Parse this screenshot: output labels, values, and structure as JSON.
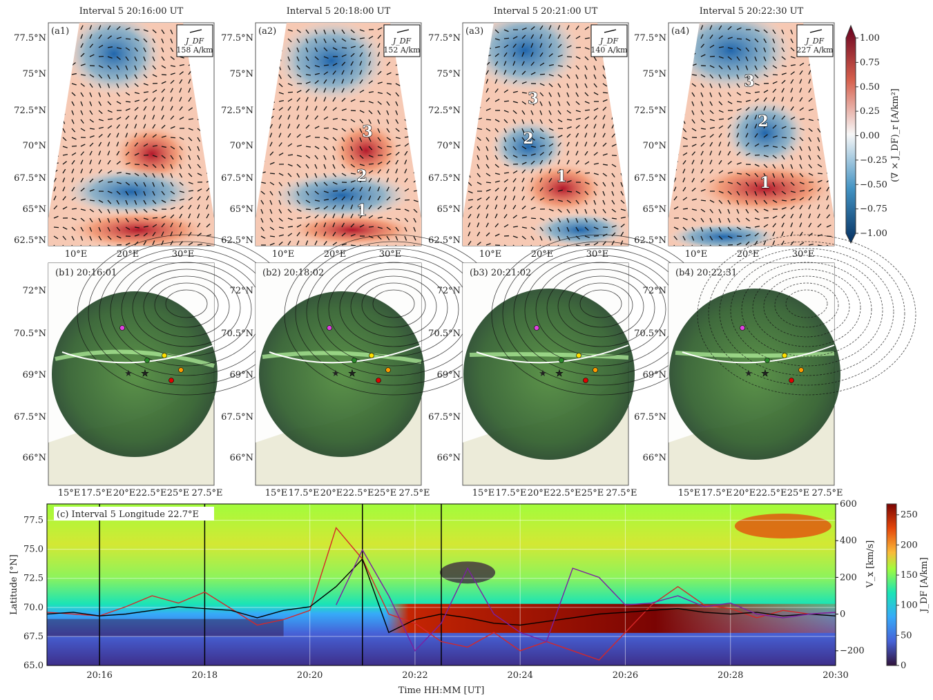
{
  "top_row": {
    "panels": [
      {
        "title": "Interval 5 20:16:00 UT",
        "label": "(a1)",
        "scale_name": "J_DF",
        "scale_value": "158 A/km",
        "regions": []
      },
      {
        "title": "Interval 5 20:18:00 UT",
        "label": "(a2)",
        "scale_name": "J_DF",
        "scale_value": "152 A/km",
        "regions": [
          "3",
          "2",
          "1"
        ]
      },
      {
        "title": "Interval 5 20:21:00 UT",
        "label": "(a3)",
        "scale_name": "J_DF",
        "scale_value": "140 A/km",
        "regions": [
          "3",
          "2",
          "1"
        ]
      },
      {
        "title": "Interval 5 20:22:30 UT",
        "label": "(a4)",
        "scale_name": "J_DF",
        "scale_value": "227 A/km",
        "regions": [
          "3",
          "2",
          "1"
        ]
      }
    ],
    "lat_ticks": [
      "77.5°N",
      "75°N",
      "72.5°N",
      "70°N",
      "67.5°N",
      "65°N",
      "62.5°N"
    ],
    "lon_ticks": [
      "10°E",
      "20°E",
      "30°E"
    ],
    "colorbar": {
      "label": "(∇ × J_DF)_r [A/km²]",
      "lim": [
        -1,
        1
      ],
      "ticks": [
        {
          "value": 1,
          "label": "1.00"
        },
        {
          "value": 0.75,
          "label": "0.75"
        },
        {
          "value": 0.5,
          "label": "0.50"
        },
        {
          "value": 0.25,
          "label": "0.25"
        },
        {
          "value": 0,
          "label": "0.00"
        },
        {
          "value": -0.25,
          "label": "−0.25"
        },
        {
          "value": -0.5,
          "label": "−0.50"
        },
        {
          "value": -0.75,
          "label": "−0.75"
        },
        {
          "value": -1,
          "label": "−1.00"
        }
      ]
    }
  },
  "middle_row": {
    "panels": [
      {
        "label": "(b1) 20:16:01"
      },
      {
        "label": "(b2) 20:18:02"
      },
      {
        "label": "(b3) 20:21:02"
      },
      {
        "label": "(b4) 20:22:31"
      }
    ],
    "lat_ticks": [
      "72°N",
      "70.5°N",
      "69°N",
      "67.5°N",
      "66°N"
    ],
    "lon_ticks": [
      "15°E",
      "17.5°E",
      "20°E",
      "22.5°E",
      "25°E",
      "27.5°E"
    ]
  },
  "chart_data": {
    "type": "line",
    "title": "(c) Interval 5 Longitude 22.7°E",
    "x_label": "Time HH:MM [UT]",
    "y_label": "Latitude [°N]",
    "y2_label": "V_x [km/s]",
    "colorbar_label": "J_DF [A/km]",
    "xlim": [
      "20:15",
      "20:30"
    ],
    "xticks": [
      "20:16",
      "20:18",
      "20:20",
      "20:22",
      "20:24",
      "20:26",
      "20:28",
      "20:30"
    ],
    "ylim": [
      65,
      78.9
    ],
    "yticks": [
      {
        "value": 65,
        "label": "65.0"
      },
      67.5,
      {
        "value": 70,
        "label": "70.0"
      },
      72.5,
      {
        "value": 75,
        "label": "75.0"
      },
      77.5
    ],
    "y2lim": [
      -280,
      600
    ],
    "y2ticks": [
      {
        "value": -200,
        "label": "−200"
      },
      0,
      200,
      400,
      600
    ],
    "colorbar_lim": [
      0,
      268
    ],
    "colorbar_ticks": [
      0,
      50,
      100,
      150,
      200,
      250
    ],
    "vlines": [
      "20:16:00",
      "20:18:00",
      "20:21:00",
      "20:22:30"
    ],
    "grid": true,
    "x": [
      "20:15:00",
      "20:15:30",
      "20:16:00",
      "20:16:30",
      "20:17:00",
      "20:17:30",
      "20:18:00",
      "20:18:30",
      "20:19:00",
      "20:19:30",
      "20:20:00",
      "20:20:30",
      "20:21:00",
      "20:21:30",
      "20:22:00",
      "20:22:30",
      "20:23:00",
      "20:23:30",
      "20:24:00",
      "20:24:30",
      "20:25:00",
      "20:25:30",
      "20:26:00",
      "20:26:30",
      "20:27:00",
      "20:27:30",
      "20:28:00",
      "20:28:30",
      "20:29:00",
      "20:29:30",
      "20:30:00"
    ],
    "series": [
      {
        "color": "#d62728",
        "axis": "y2",
        "values": [
          10,
          0,
          -10,
          40,
          100,
          60,
          120,
          30,
          -60,
          -30,
          20,
          470,
          300,
          0,
          -50,
          -150,
          -180,
          -100,
          -200,
          -150,
          -200,
          -250,
          -100,
          50,
          150,
          50,
          30,
          -20,
          20,
          0,
          10
        ]
      },
      {
        "color": "#000000",
        "axis": "y2",
        "values": [
          0,
          10,
          -10,
          0,
          20,
          40,
          30,
          20,
          -20,
          20,
          40,
          150,
          300,
          -100,
          -30,
          0,
          -20,
          -50,
          -60,
          -40,
          -20,
          0,
          10,
          20,
          30,
          10,
          0,
          10,
          -10,
          0,
          -10
        ]
      },
      {
        "color": "#7b1fa2",
        "axis": "y2",
        "values": [
          null,
          null,
          null,
          null,
          null,
          null,
          null,
          null,
          null,
          null,
          null,
          50,
          350,
          100,
          -200,
          -50,
          250,
          0,
          -100,
          -150,
          250,
          200,
          50,
          60,
          100,
          40,
          60,
          0,
          -20,
          0,
          10
        ]
      }
    ]
  }
}
